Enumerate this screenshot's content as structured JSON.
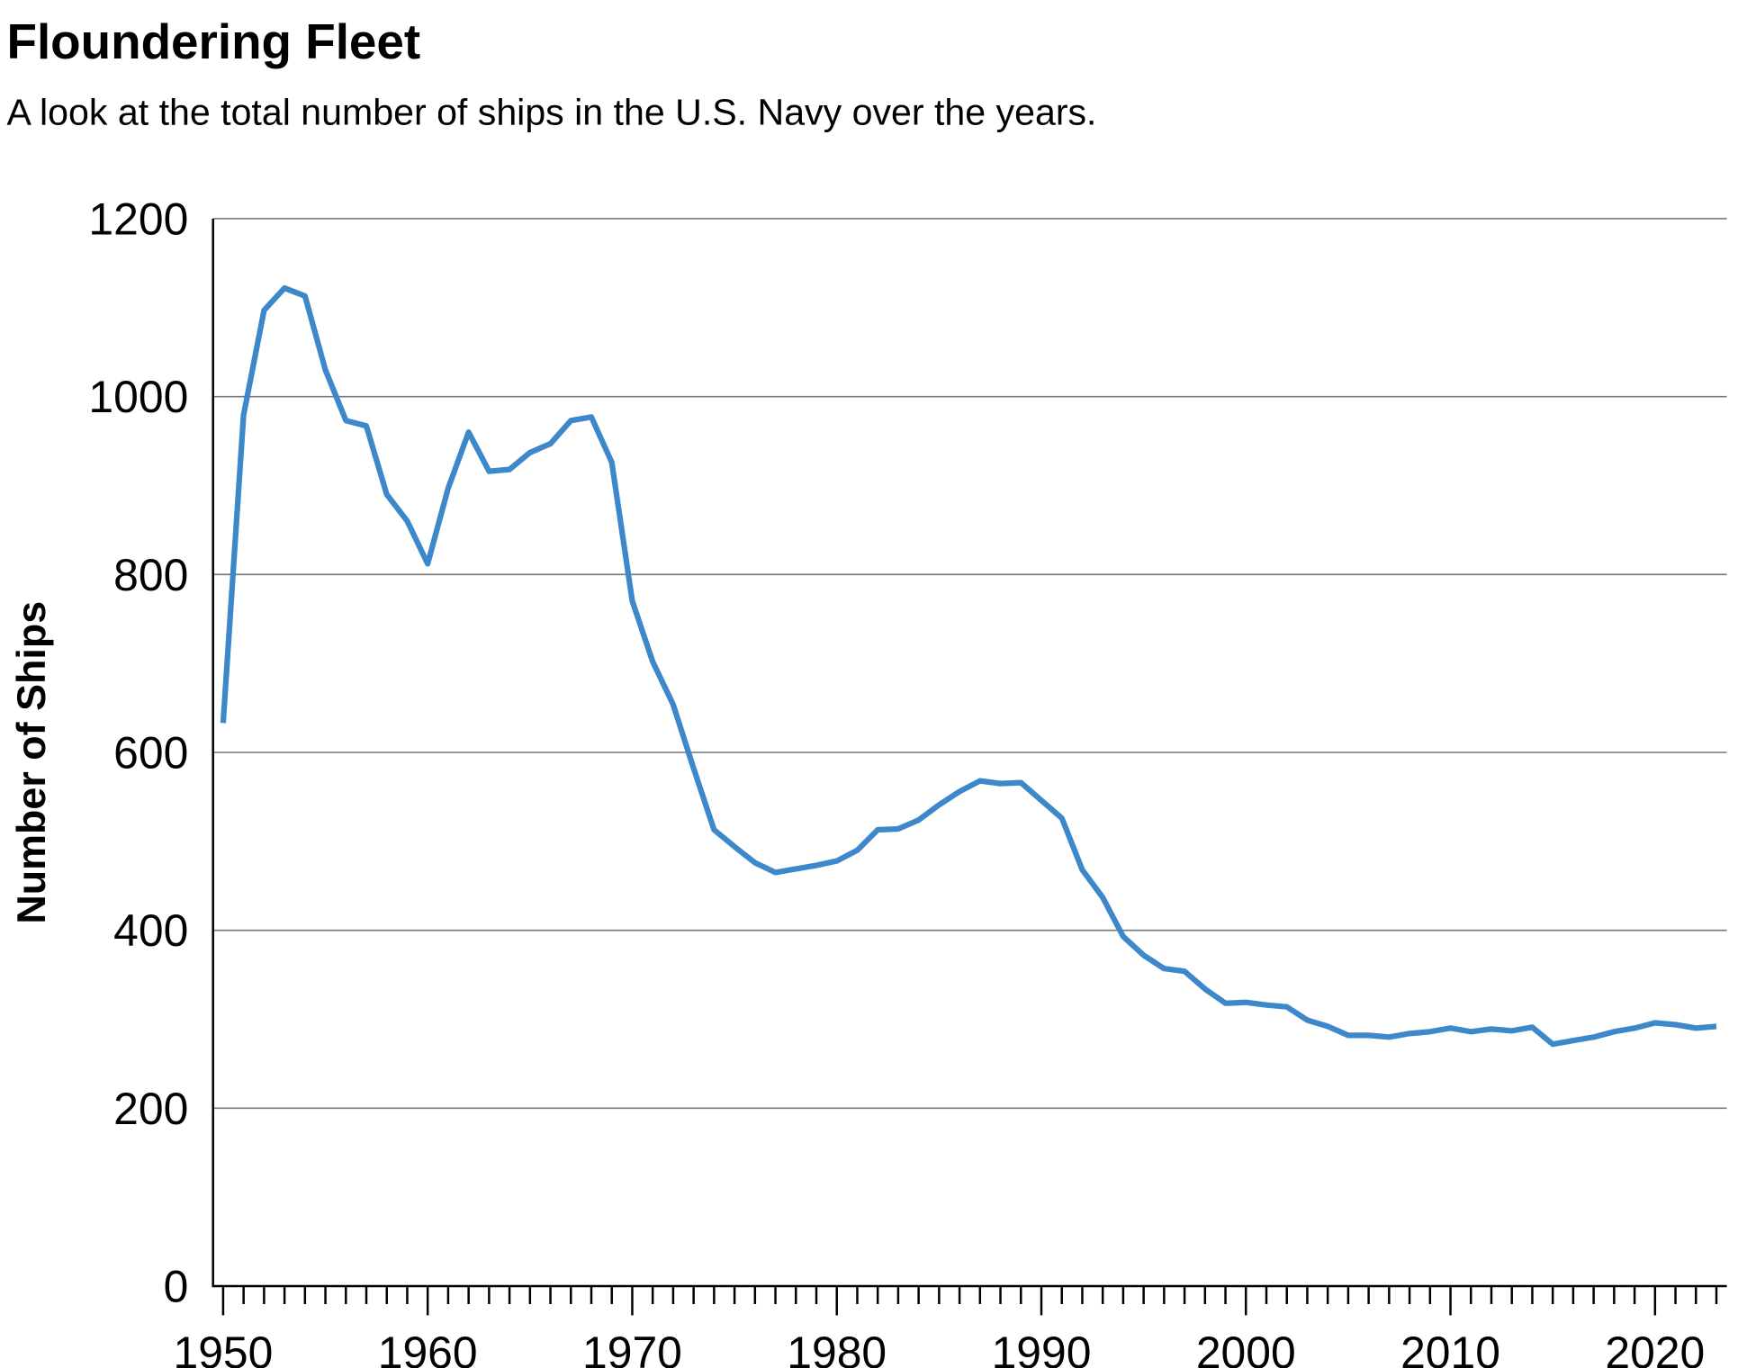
{
  "chart_data": {
    "type": "line",
    "title": "Floundering Fleet",
    "subtitle": "A look at the total number of ships in the U.S. Navy over the years.",
    "xlabel": "",
    "ylabel": "Number of Ships",
    "xlim": [
      1950,
      2023
    ],
    "ylim": [
      0,
      1200
    ],
    "xticks": [
      1950,
      1960,
      1970,
      1980,
      1990,
      2000,
      2010,
      2020
    ],
    "yticks": [
      0,
      200,
      400,
      600,
      800,
      1000,
      1200
    ],
    "grid": "horizontal",
    "line_color": "#3d87cb",
    "x": [
      1950,
      1951,
      1952,
      1953,
      1954,
      1955,
      1956,
      1957,
      1958,
      1959,
      1960,
      1961,
      1962,
      1963,
      1964,
      1965,
      1966,
      1967,
      1968,
      1969,
      1970,
      1971,
      1972,
      1973,
      1974,
      1975,
      1976,
      1977,
      1978,
      1979,
      1980,
      1981,
      1982,
      1983,
      1984,
      1985,
      1986,
      1987,
      1988,
      1989,
      1990,
      1991,
      1992,
      1993,
      1994,
      1995,
      1996,
      1997,
      1998,
      1999,
      2000,
      2001,
      2002,
      2003,
      2004,
      2005,
      2006,
      2007,
      2008,
      2009,
      2010,
      2011,
      2012,
      2013,
      2014,
      2015,
      2016,
      2017,
      2018,
      2019,
      2020,
      2021,
      2022,
      2023
    ],
    "values": [
      633,
      979,
      1097,
      1122,
      1113,
      1030,
      973,
      967,
      890,
      860,
      812,
      897,
      960,
      916,
      918,
      937,
      947,
      973,
      977,
      926,
      770,
      702,
      654,
      582,
      513,
      494,
      476,
      465,
      469,
      473,
      478,
      490,
      513,
      514,
      524,
      541,
      556,
      568,
      565,
      566,
      546,
      526,
      468,
      437,
      393,
      372,
      357,
      354,
      334,
      318,
      319,
      316,
      314,
      299,
      292,
      282,
      282,
      280,
      284,
      286,
      290,
      286,
      289,
      287,
      291,
      272,
      276,
      280,
      286,
      290,
      296,
      294,
      290,
      292
    ]
  }
}
